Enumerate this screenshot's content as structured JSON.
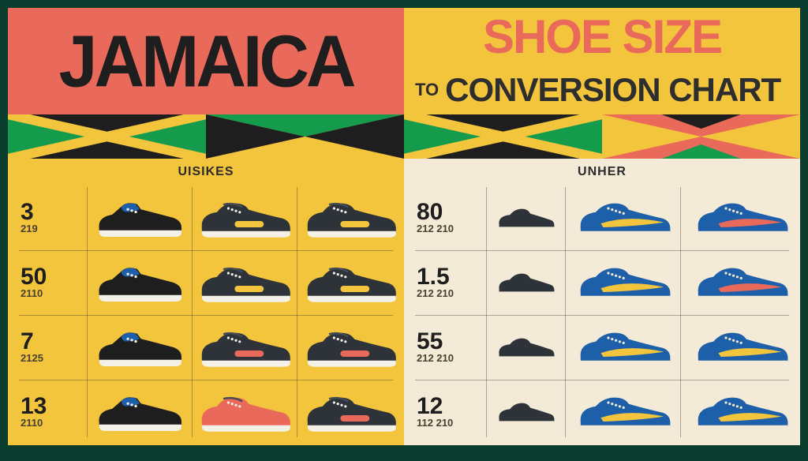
{
  "header": {
    "left": "JAMAICA",
    "right_top": "SHOE SIZE",
    "to": "TO",
    "right_bot": "CONVERSION CHART"
  },
  "flag_colors": {
    "green": "#149b4c",
    "yellow": "#f2c53d",
    "black": "#1e1e1e",
    "coral": "#e9695a"
  },
  "left": {
    "header": "UISIKES",
    "rows": [
      {
        "size": "3",
        "sub": "219",
        "shoe1": "sneaker_a",
        "shoe2": "lowtop",
        "accent2": "#f2c53d",
        "shoe3": "lowtop",
        "accent3": "#f2c53d"
      },
      {
        "size": "50",
        "sub": "2110",
        "shoe1": "sneaker_a",
        "shoe2": "lowtop",
        "accent2": "#f2c53d",
        "shoe3": "lowtop",
        "accent3": "#f2c53d"
      },
      {
        "size": "7",
        "sub": "2125",
        "shoe1": "sneaker_a",
        "shoe2": "lowtop",
        "accent2": "#e9695a",
        "shoe3": "lowtop",
        "accent3": "#e9695a"
      },
      {
        "size": "13",
        "sub": "2110",
        "shoe1": "sneaker_a",
        "shoe2": "lowtop_coral",
        "accent2": "#e9695a",
        "shoe3": "lowtop",
        "accent3": "#e9695a"
      }
    ]
  },
  "right": {
    "header": "UNHER",
    "rows": [
      {
        "size": "80",
        "sub": "212 210",
        "mini": "mini",
        "shoe2": "sneaker_b",
        "stripe2": "#f2c53d",
        "shoe3": "sneaker_b",
        "stripe3": "#e9695a"
      },
      {
        "size": "1.5",
        "sub": "212 210",
        "mini": "mini",
        "shoe2": "sneaker_b",
        "stripe2": "#f2c53d",
        "shoe3": "sneaker_b",
        "stripe3": "#e9695a"
      },
      {
        "size": "55",
        "sub": "212 210",
        "mini": "mini",
        "shoe2": "sneaker_b",
        "stripe2": "#f2c53d",
        "shoe3": "sneaker_b",
        "stripe3": "#f2c53d"
      },
      {
        "size": "12",
        "sub": "112 210",
        "mini": "mini",
        "shoe2": "sneaker_b",
        "stripe2": "#f2c53d",
        "shoe3": "sneaker_b",
        "stripe3": "#f2c53d"
      }
    ]
  },
  "colors": {
    "dark": "#2e333a",
    "dark2": "#1e1e1e",
    "white": "#f4f1e8",
    "blue": "#1d5fa8",
    "cream": "#f3ead7",
    "yellow": "#f2c53d",
    "coral": "#e9695a"
  }
}
